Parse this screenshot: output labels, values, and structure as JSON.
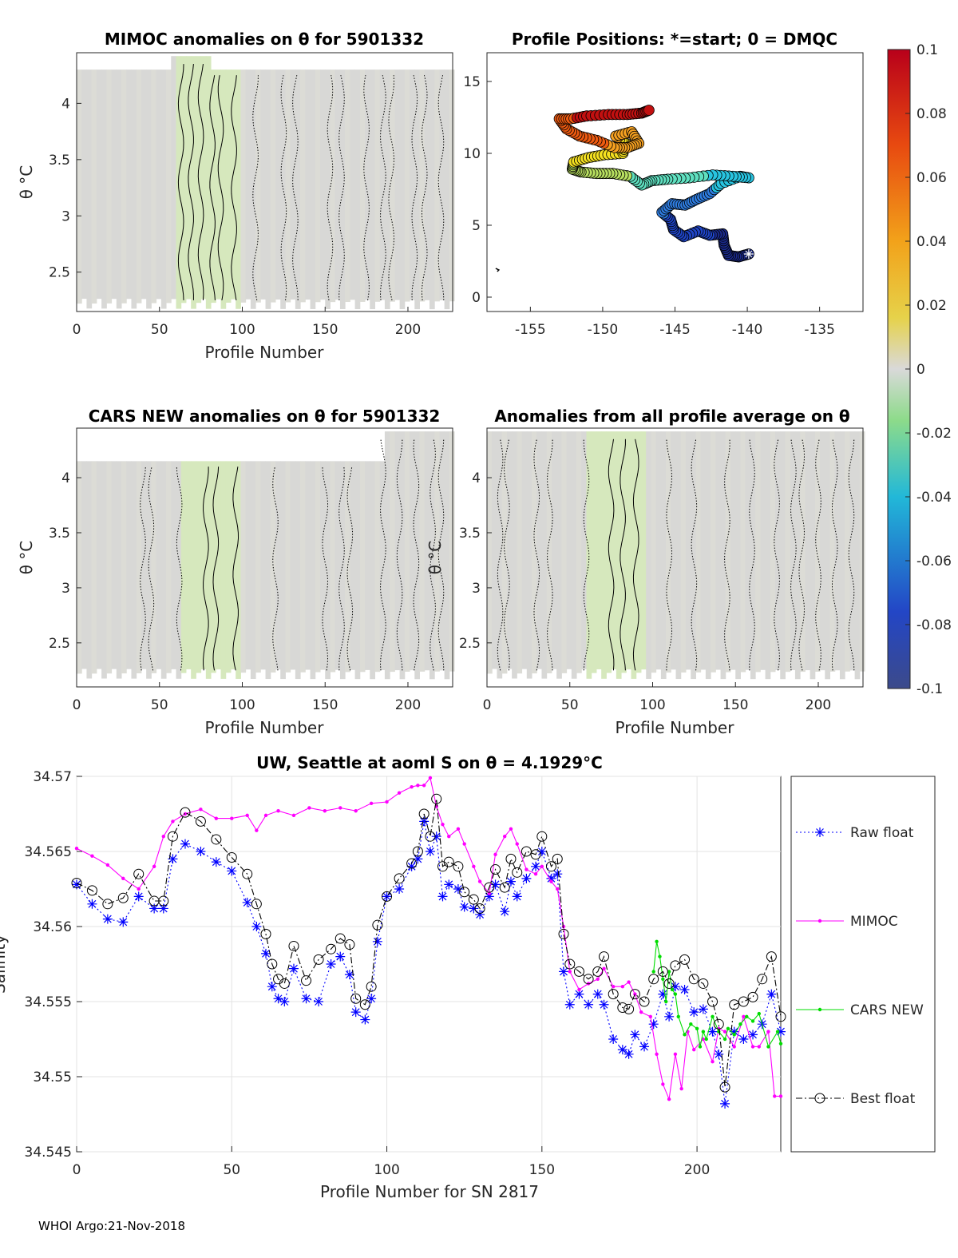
{
  "footer": "WHOI Argo:21-Nov-2018",
  "colorbar": {
    "ticks": [
      "0.1",
      "0.08",
      "0.06",
      "0.04",
      "0.02",
      "0",
      "-0.02",
      "-0.04",
      "-0.06",
      "-0.08",
      "-0.1"
    ],
    "range": [
      -0.1,
      0.1
    ]
  },
  "chart_data": [
    {
      "type": "heatmap",
      "title": "MIMOC anomalies on θ  for 5901332",
      "xlabel": "Profile Number",
      "ylabel": "θ °C",
      "xlim": [
        0,
        227
      ],
      "ylim": [
        2.15,
        4.45
      ],
      "xticks": [
        "0",
        "50",
        "100",
        "150",
        "200"
      ],
      "yticks": [
        "2.5",
        "3",
        "3.5",
        "4"
      ],
      "note": "mostly near-zero anomalies; slightly negative band around profiles 60-97"
    },
    {
      "type": "scatter",
      "title": "Profile Positions: *=start; 0 = DMQC",
      "xlim": [
        -158,
        -132
      ],
      "ylim": [
        -1,
        17
      ],
      "xticks": [
        "-155",
        "-150",
        "-145",
        "-140",
        "-135"
      ],
      "yticks": [
        "0",
        "5",
        "10",
        "15"
      ],
      "start": [
        -139.9,
        3.0
      ],
      "track": [
        [
          -139.9,
          3.0
        ],
        [
          -140.6,
          2.8
        ],
        [
          -141.3,
          2.9
        ],
        [
          -141.6,
          3.6
        ],
        [
          -141.7,
          4.4
        ],
        [
          -142.6,
          4.3
        ],
        [
          -143.4,
          4.6
        ],
        [
          -144.4,
          4.2
        ],
        [
          -145.1,
          4.7
        ],
        [
          -145.3,
          5.4
        ],
        [
          -145.9,
          5.9
        ],
        [
          -145.2,
          6.5
        ],
        [
          -144.3,
          6.4
        ],
        [
          -143.5,
          6.8
        ],
        [
          -142.6,
          7.2
        ],
        [
          -141.8,
          7.9
        ],
        [
          -140.5,
          8.4
        ],
        [
          -139.9,
          8.3
        ],
        [
          -141.0,
          8.4
        ],
        [
          -142.4,
          8.5
        ],
        [
          -144.0,
          8.3
        ],
        [
          -145.5,
          8.2
        ],
        [
          -146.6,
          8.1
        ],
        [
          -147.3,
          7.8
        ],
        [
          -148.1,
          8.4
        ],
        [
          -149.3,
          8.6
        ],
        [
          -150.4,
          8.6
        ],
        [
          -151.5,
          8.7
        ],
        [
          -152.1,
          8.9
        ],
        [
          -152.0,
          9.4
        ],
        [
          -151.0,
          9.7
        ],
        [
          -149.9,
          9.9
        ],
        [
          -148.6,
          10.0
        ],
        [
          -148.4,
          10.7
        ],
        [
          -149.1,
          11.2
        ],
        [
          -148.0,
          11.5
        ],
        [
          -147.5,
          10.7
        ],
        [
          -148.3,
          10.4
        ],
        [
          -149.2,
          10.4
        ],
        [
          -150.4,
          10.9
        ],
        [
          -151.6,
          11.2
        ],
        [
          -152.5,
          11.7
        ],
        [
          -153.0,
          12.4
        ],
        [
          -152.2,
          12.4
        ],
        [
          -151.1,
          12.6
        ],
        [
          -149.6,
          12.7
        ],
        [
          -148.3,
          12.7
        ],
        [
          -147.3,
          12.8
        ],
        [
          -146.8,
          13.0
        ]
      ]
    },
    {
      "type": "heatmap",
      "title": "CARS NEW anomalies on θ for 5901332",
      "xlabel": "Profile Number",
      "ylabel": "θ °C",
      "xlim": [
        0,
        227
      ],
      "ylim": [
        2.1,
        4.45
      ],
      "xticks": [
        "0",
        "50",
        "100",
        "150",
        "200"
      ],
      "yticks": [
        "2.5",
        "3",
        "3.5",
        "4"
      ]
    },
    {
      "type": "heatmap",
      "title": "Anomalies from all profile average on θ",
      "xlabel": "Profile Number",
      "ylabel": "θ °C",
      "xlim": [
        0,
        227
      ],
      "ylim": [
        2.1,
        4.45
      ],
      "xticks": [
        "0",
        "50",
        "100",
        "150",
        "200"
      ],
      "yticks": [
        "2.5",
        "3",
        "3.5",
        "4"
      ]
    },
    {
      "type": "line",
      "title": "UW, Seattle at aoml S on θ = 4.1929°C",
      "xlabel": "Profile Number for SN 2817",
      "ylabel": "Salinity",
      "xlim": [
        0,
        227
      ],
      "ylim": [
        34.545,
        34.57
      ],
      "xticks": [
        "0",
        "50",
        "100",
        "150",
        "200"
      ],
      "yticks": [
        "34.545",
        "34.55",
        "34.555",
        "34.56",
        "34.565",
        "34.57"
      ],
      "grid": true,
      "legend": [
        "Raw float",
        "MIMOC",
        "CARS NEW",
        "Best float"
      ],
      "series": [
        {
          "name": "Raw float",
          "color": "#0000ff",
          "marker": "star",
          "style": "dotted",
          "x": [
            0,
            5,
            10,
            15,
            20,
            25,
            28,
            31,
            35,
            40,
            45,
            50,
            55,
            58,
            61,
            63,
            65,
            67,
            70,
            74,
            78,
            82,
            85,
            88,
            90,
            93,
            95,
            97,
            100,
            104,
            108,
            110,
            112,
            114,
            116,
            118,
            120,
            123,
            125,
            128,
            130,
            133,
            135,
            138,
            140,
            142,
            145,
            148,
            150,
            153,
            155,
            157,
            159,
            162,
            165,
            168,
            170,
            173,
            176,
            178,
            180,
            183,
            186,
            189,
            191,
            193,
            196,
            199,
            202,
            205,
            207,
            209,
            212,
            215,
            218,
            221,
            224,
            227
          ],
          "values": [
            34.5628,
            34.5615,
            34.5605,
            34.5603,
            34.562,
            34.5612,
            34.5612,
            34.5645,
            34.5655,
            34.565,
            34.5643,
            34.5637,
            34.5616,
            34.56,
            34.5582,
            34.556,
            34.5552,
            34.555,
            34.5572,
            34.5552,
            34.555,
            34.5575,
            34.558,
            34.5568,
            34.5543,
            34.5538,
            34.5552,
            34.559,
            34.562,
            34.5625,
            34.564,
            34.5645,
            34.567,
            34.565,
            34.566,
            34.562,
            34.5628,
            34.5625,
            34.5613,
            34.5612,
            34.5608,
            34.562,
            34.5628,
            34.561,
            34.563,
            34.562,
            34.5632,
            34.564,
            34.565,
            34.5632,
            34.5635,
            34.557,
            34.5548,
            34.5555,
            34.5548,
            34.5555,
            34.5548,
            34.5525,
            34.5518,
            34.5515,
            34.5528,
            34.552,
            34.5535,
            34.5555,
            34.554,
            34.556,
            34.5558,
            34.5543,
            34.5545,
            34.553,
            34.5515,
            34.5482,
            34.553,
            34.5525,
            34.5528,
            34.5535,
            34.5555,
            34.553
          ]
        },
        {
          "name": "MIMOC",
          "color": "#ff00ff",
          "marker": "dot",
          "style": "solid",
          "x": [
            0,
            5,
            10,
            15,
            20,
            25,
            28,
            31,
            35,
            40,
            45,
            50,
            55,
            58,
            61,
            65,
            70,
            75,
            80,
            85,
            90,
            95,
            100,
            104,
            108,
            110,
            112,
            114,
            116,
            118,
            120,
            123,
            125,
            128,
            130,
            133,
            135,
            138,
            140,
            142,
            145,
            148,
            150,
            153,
            155,
            157,
            159,
            162,
            165,
            168,
            170,
            173,
            176,
            178,
            180,
            182,
            185,
            187,
            189,
            191,
            193,
            195,
            197,
            199,
            202,
            205,
            207,
            209,
            212,
            215,
            218,
            220,
            223,
            225,
            227
          ],
          "values": [
            34.5652,
            34.5647,
            34.5641,
            34.5632,
            34.5625,
            34.564,
            34.566,
            34.567,
            34.5675,
            34.5678,
            34.5672,
            34.5672,
            34.5674,
            34.5664,
            34.5674,
            34.5677,
            34.5674,
            34.5679,
            34.5677,
            34.5679,
            34.5677,
            34.5682,
            34.5683,
            34.5689,
            34.5693,
            34.5694,
            34.5694,
            34.5699,
            34.568,
            34.5668,
            34.566,
            34.5665,
            34.5655,
            34.564,
            34.563,
            34.5622,
            34.5648,
            34.566,
            34.5665,
            34.5655,
            34.5638,
            34.5635,
            34.564,
            34.563,
            34.5625,
            34.56,
            34.557,
            34.5558,
            34.5562,
            34.5565,
            34.5572,
            34.556,
            34.556,
            34.5563,
            34.5555,
            34.5543,
            34.554,
            34.5515,
            34.5495,
            34.5485,
            34.5515,
            34.5492,
            34.553,
            34.5518,
            34.5525,
            34.551,
            34.5532,
            34.553,
            34.552,
            34.554,
            34.552,
            34.552,
            34.553,
            34.5487,
            34.5487
          ]
        },
        {
          "name": "CARS NEW",
          "color": "#00dd00",
          "marker": "dot",
          "style": "solid",
          "x": [
            186,
            187,
            188,
            189,
            190,
            191,
            192,
            193,
            194,
            196,
            198,
            200,
            201,
            202,
            203,
            205,
            207,
            209,
            210,
            212,
            214,
            216,
            218,
            220,
            223,
            226,
            227
          ],
          "values": [
            34.557,
            34.559,
            34.558,
            34.5565,
            34.555,
            34.557,
            34.5558,
            34.5555,
            34.554,
            34.5528,
            34.5535,
            34.5532,
            34.552,
            34.553,
            34.5525,
            34.554,
            34.553,
            34.5525,
            34.5532,
            34.5528,
            34.5535,
            34.554,
            34.5537,
            34.5542,
            34.552,
            34.553,
            34.5522
          ]
        },
        {
          "name": "Best float",
          "color": "#000000",
          "marker": "circle",
          "style": "dashdot",
          "x": [
            0,
            5,
            10,
            15,
            20,
            25,
            28,
            31,
            35,
            40,
            45,
            50,
            55,
            58,
            61,
            63,
            65,
            67,
            70,
            74,
            78,
            82,
            85,
            88,
            90,
            93,
            95,
            97,
            100,
            104,
            108,
            110,
            112,
            114,
            116,
            118,
            120,
            123,
            125,
            128,
            130,
            133,
            135,
            138,
            140,
            142,
            145,
            148,
            150,
            153,
            155,
            157,
            159,
            162,
            165,
            168,
            170,
            173,
            176,
            178,
            180,
            183,
            186,
            189,
            191,
            193,
            196,
            199,
            202,
            205,
            207,
            209,
            212,
            215,
            218,
            221,
            224,
            227
          ],
          "values": [
            34.5629,
            34.5624,
            34.5615,
            34.5619,
            34.5635,
            34.5617,
            34.5617,
            34.566,
            34.5676,
            34.567,
            34.5658,
            34.5646,
            34.5635,
            34.5615,
            34.5595,
            34.5575,
            34.5565,
            34.5562,
            34.5587,
            34.5564,
            34.5578,
            34.5585,
            34.5592,
            34.5588,
            34.5552,
            34.5548,
            34.556,
            34.5601,
            34.562,
            34.5632,
            34.5642,
            34.565,
            34.5675,
            34.566,
            34.5685,
            34.564,
            34.5643,
            34.564,
            34.5623,
            34.5618,
            34.5612,
            34.5626,
            34.5638,
            34.5626,
            34.5645,
            34.5636,
            34.565,
            34.5648,
            34.566,
            34.564,
            34.5645,
            34.5595,
            34.5575,
            34.557,
            34.5565,
            34.557,
            34.558,
            34.5555,
            34.5546,
            34.5545,
            34.5555,
            34.555,
            34.5565,
            34.557,
            34.5562,
            34.5574,
            34.5578,
            34.5565,
            34.5562,
            34.555,
            34.5535,
            34.5493,
            34.5548,
            34.555,
            34.5553,
            34.5565,
            34.558,
            34.554
          ]
        }
      ]
    }
  ]
}
